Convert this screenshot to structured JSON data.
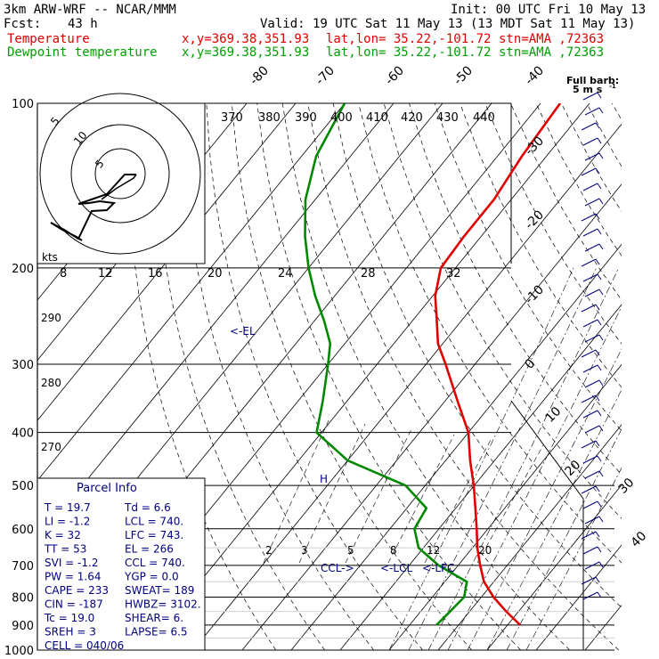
{
  "header": {
    "model": "3km ARW-WRF -- NCAR/MMM",
    "init": "Init: 00 UTC Fri 10 May 13",
    "fcst_label": "Fcst:",
    "fcst_value": "43 h",
    "valid": "Valid: 19 UTC Sat 11 May 13 (13 MDT Sat 11 May 13)",
    "temp_label": "Temperature",
    "dew_label": "Dewpoint temperature",
    "coords": "x,y=369.38,351.93",
    "latlon": "lat,lon= 35.22,-101.72",
    "stn": "stn=AMA ,72363"
  },
  "colors": {
    "temperature": "#e00000",
    "dewpoint": "#008800",
    "parcel": "#000080",
    "text": "#000000",
    "grid": "#000000"
  },
  "barb_legend": {
    "title": "Full barb:",
    "value": "5 m s",
    "exp": "-1"
  },
  "chart_data": {
    "type": "line",
    "subtype": "skew-T log-p sounding",
    "y_axis": {
      "scale": "log",
      "label": "pressure (hPa)",
      "range": [
        1000,
        100
      ],
      "ticks": [
        100,
        200,
        300,
        400,
        500,
        600,
        700,
        800,
        900,
        1000
      ]
    },
    "skew_isotherm_ticks": [
      -80,
      -70,
      -60,
      -50,
      -40,
      -30,
      -20,
      -10,
      0,
      10,
      20,
      30,
      40
    ],
    "mixing_ratio_ticks": [
      2,
      3,
      5,
      8,
      12,
      20
    ],
    "theta_e_ticks": [
      270,
      280,
      290
    ],
    "series": [
      {
        "name": "Temperature",
        "pressure": [
          900,
          850,
          800,
          750,
          700,
          650,
          600,
          550,
          500,
          450,
          400,
          350,
          300,
          275,
          250,
          225,
          200,
          175,
          150,
          125,
          100
        ],
        "values": [
          22.6,
          17.5,
          12.5,
          8.0,
          4.5,
          1.0,
          -2.3,
          -6.0,
          -10.1,
          -15.0,
          -20.0,
          -27.5,
          -36.0,
          -41.0,
          -45.0,
          -49.5,
          -53.0,
          -53.5,
          -53.5,
          -55.0,
          -56.0
        ]
      },
      {
        "name": "Dewpoint temperature",
        "pressure": [
          900,
          850,
          800,
          750,
          700,
          650,
          600,
          550,
          500,
          450,
          400,
          350,
          300,
          275,
          250,
          225,
          200,
          175,
          150,
          125,
          100
        ],
        "values": [
          5.5,
          6.0,
          6.5,
          4.5,
          -4.0,
          -11.0,
          -15.0,
          -16.0,
          -24.0,
          -40.0,
          -51.0,
          -55.0,
          -60.0,
          -63.0,
          -68.0,
          -74.0,
          -80.0,
          -86.0,
          -92.0,
          -97.0,
          -100.0
        ]
      }
    ],
    "hodograph": {
      "ring_labels": [
        "5",
        "10",
        "5"
      ],
      "speed_labels": [
        "kts",
        "8",
        "12",
        "16",
        "20",
        "24",
        "28",
        "32"
      ],
      "theta_labels": [
        "370",
        "380",
        "390",
        "400",
        "410",
        "420",
        "430",
        "440"
      ]
    },
    "annotations": {
      "el": "<-EL",
      "ccl": "CCL->",
      "lcl": "<-LCL",
      "lfc": "<-LFC",
      "h": "H"
    }
  },
  "parcel_info": {
    "title": "Parcel Info",
    "rows": [
      [
        "T  =    19.7",
        "Td =   6.6"
      ],
      [
        "LI =    -1.2",
        "LCL = 740."
      ],
      [
        "K  =      32",
        "LFC = 743."
      ],
      [
        "TT =      53",
        "EL  =  266"
      ],
      [
        "SVI =   -1.2",
        "CCL = 740."
      ],
      [
        "PW =    1.64",
        "YGP =  0.0"
      ],
      [
        "CAPE =   233",
        "SWEAT=  189"
      ],
      [
        "CIN =   -187",
        "HWBZ= 3102."
      ],
      [
        "Tc =    19.0",
        "SHEAR=   6."
      ],
      [
        "SREH =     3",
        "LAPSE=  6.5"
      ],
      [
        "CELL = 040/06",
        ""
      ]
    ]
  }
}
